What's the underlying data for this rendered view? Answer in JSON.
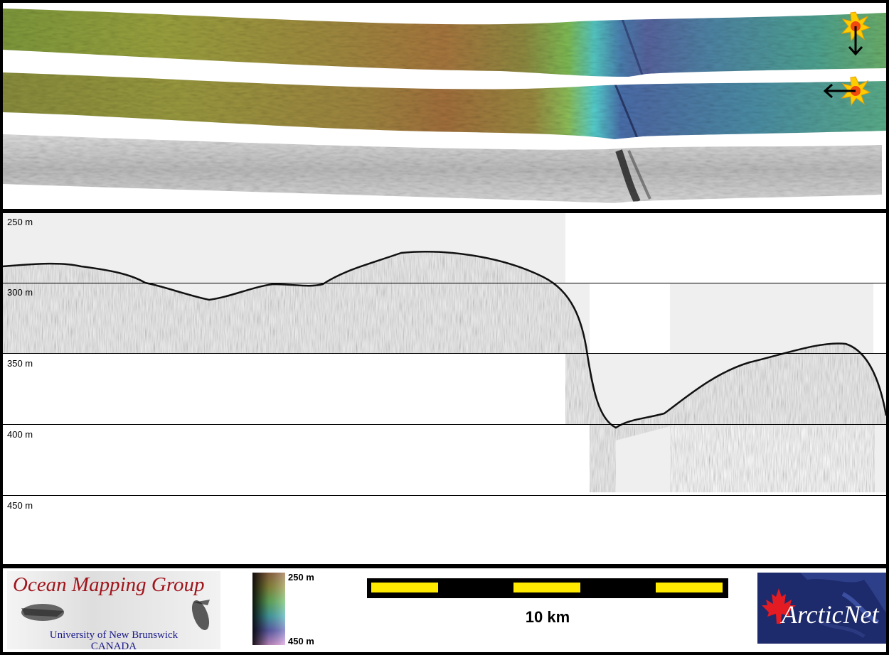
{
  "profile": {
    "depth_labels": [
      "250 m",
      "300 m",
      "350 m",
      "400 m",
      "450 m"
    ]
  },
  "footer": {
    "logo": {
      "title": "Ocean Mapping Group",
      "university": "University of New Brunswick",
      "country": "CANADA"
    },
    "colorbar": {
      "top_label": "250 m",
      "bottom_label": "450 m"
    },
    "scale": {
      "label": "10 km"
    },
    "arcticnet": {
      "name": "ArcticNet"
    }
  },
  "colors": {
    "scale_fill": "#ffea00",
    "scale_bar": "#000000",
    "logo_title": "#a0141c",
    "logo_subtitle": "#1a1a8a",
    "arcticnet_bg": "#1d2a6c",
    "maple_leaf": "#e31b23"
  },
  "icons": [
    "sun-icon",
    "arrow-down-icon",
    "arrow-left-icon",
    "maple-leaf-icon"
  ]
}
